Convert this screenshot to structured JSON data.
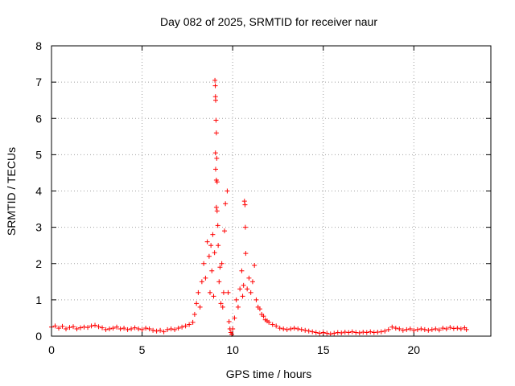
{
  "chart_data": {
    "type": "scatter",
    "title": "Day 082 of 2025, SRMTID for receiver naur",
    "xlabel": "GPS time / hours",
    "ylabel": "SRMTID / TECUs",
    "xlim": [
      0,
      24.25
    ],
    "ylim": [
      0,
      8
    ],
    "x_ticks": [
      "0",
      "5",
      "10",
      "15",
      "20"
    ],
    "y_ticks": [
      "0",
      "1",
      "2",
      "3",
      "4",
      "5",
      "6",
      "7",
      "8"
    ],
    "grid": true,
    "marker": "plus",
    "series_color": "#ff0000",
    "series": [
      {
        "name": "SRMTID",
        "points": [
          [
            0.0,
            0.25
          ],
          [
            0.2,
            0.28
          ],
          [
            0.4,
            0.22
          ],
          [
            0.6,
            0.27
          ],
          [
            0.8,
            0.2
          ],
          [
            1.0,
            0.24
          ],
          [
            1.2,
            0.26
          ],
          [
            1.4,
            0.2
          ],
          [
            1.6,
            0.23
          ],
          [
            1.8,
            0.25
          ],
          [
            2.0,
            0.24
          ],
          [
            2.2,
            0.28
          ],
          [
            2.4,
            0.3
          ],
          [
            2.6,
            0.26
          ],
          [
            2.8,
            0.23
          ],
          [
            3.0,
            0.18
          ],
          [
            3.2,
            0.2
          ],
          [
            3.4,
            0.22
          ],
          [
            3.6,
            0.25
          ],
          [
            3.8,
            0.2
          ],
          [
            4.0,
            0.22
          ],
          [
            4.2,
            0.18
          ],
          [
            4.4,
            0.2
          ],
          [
            4.6,
            0.23
          ],
          [
            4.8,
            0.2
          ],
          [
            5.0,
            0.18
          ],
          [
            5.2,
            0.22
          ],
          [
            5.4,
            0.2
          ],
          [
            5.6,
            0.16
          ],
          [
            5.8,
            0.14
          ],
          [
            6.0,
            0.16
          ],
          [
            6.2,
            0.12
          ],
          [
            6.4,
            0.18
          ],
          [
            6.6,
            0.2
          ],
          [
            6.8,
            0.18
          ],
          [
            7.0,
            0.22
          ],
          [
            7.2,
            0.25
          ],
          [
            7.4,
            0.28
          ],
          [
            7.6,
            0.32
          ],
          [
            7.8,
            0.38
          ],
          [
            7.9,
            0.6
          ],
          [
            8.0,
            0.9
          ],
          [
            8.1,
            1.2
          ],
          [
            8.2,
            0.8
          ],
          [
            8.3,
            1.5
          ],
          [
            8.4,
            2.0
          ],
          [
            8.5,
            1.6
          ],
          [
            8.6,
            2.6
          ],
          [
            8.7,
            2.2
          ],
          [
            8.75,
            1.2
          ],
          [
            8.8,
            2.5
          ],
          [
            8.85,
            1.8
          ],
          [
            8.9,
            2.8
          ],
          [
            8.95,
            1.1
          ],
          [
            9.0,
            2.3
          ],
          [
            9.02,
            7.05
          ],
          [
            9.04,
            6.9
          ],
          [
            9.05,
            6.6
          ],
          [
            9.06,
            6.5
          ],
          [
            9.08,
            5.95
          ],
          [
            9.1,
            5.6
          ],
          [
            9.05,
            5.05
          ],
          [
            9.12,
            4.9
          ],
          [
            9.06,
            4.6
          ],
          [
            9.1,
            4.3
          ],
          [
            9.14,
            4.25
          ],
          [
            9.1,
            3.55
          ],
          [
            9.14,
            3.45
          ],
          [
            9.18,
            3.05
          ],
          [
            9.2,
            2.5
          ],
          [
            9.25,
            1.5
          ],
          [
            9.3,
            1.9
          ],
          [
            9.35,
            0.9
          ],
          [
            9.4,
            2.0
          ],
          [
            9.45,
            0.8
          ],
          [
            9.5,
            1.2
          ],
          [
            9.55,
            2.9
          ],
          [
            9.6,
            3.65
          ],
          [
            9.7,
            4.0
          ],
          [
            9.75,
            1.2
          ],
          [
            9.8,
            0.4
          ],
          [
            9.85,
            0.2
          ],
          [
            9.9,
            0.1
          ],
          [
            9.95,
            0.05
          ],
          [
            10.0,
            0.2
          ],
          [
            10.1,
            0.5
          ],
          [
            10.2,
            1.0
          ],
          [
            10.3,
            0.8
          ],
          [
            10.4,
            1.3
          ],
          [
            10.5,
            1.8
          ],
          [
            10.55,
            1.1
          ],
          [
            10.6,
            1.4
          ],
          [
            10.65,
            3.72
          ],
          [
            10.68,
            3.62
          ],
          [
            10.7,
            3.0
          ],
          [
            10.72,
            2.28
          ],
          [
            10.8,
            1.3
          ],
          [
            10.9,
            1.6
          ],
          [
            11.0,
            1.2
          ],
          [
            11.1,
            1.5
          ],
          [
            11.2,
            1.95
          ],
          [
            11.3,
            1.0
          ],
          [
            11.4,
            0.8
          ],
          [
            11.5,
            0.75
          ],
          [
            11.6,
            0.6
          ],
          [
            11.7,
            0.55
          ],
          [
            11.8,
            0.45
          ],
          [
            11.9,
            0.42
          ],
          [
            12.0,
            0.38
          ],
          [
            12.2,
            0.32
          ],
          [
            12.4,
            0.28
          ],
          [
            12.6,
            0.22
          ],
          [
            12.8,
            0.2
          ],
          [
            13.0,
            0.18
          ],
          [
            13.2,
            0.2
          ],
          [
            13.4,
            0.22
          ],
          [
            13.6,
            0.2
          ],
          [
            13.8,
            0.18
          ],
          [
            14.0,
            0.16
          ],
          [
            14.2,
            0.14
          ],
          [
            14.4,
            0.12
          ],
          [
            14.6,
            0.1
          ],
          [
            14.8,
            0.08
          ],
          [
            15.0,
            0.1
          ],
          [
            15.2,
            0.08
          ],
          [
            15.4,
            0.06
          ],
          [
            15.6,
            0.08
          ],
          [
            15.8,
            0.1
          ],
          [
            16.0,
            0.09
          ],
          [
            16.2,
            0.11
          ],
          [
            16.4,
            0.1
          ],
          [
            16.6,
            0.12
          ],
          [
            16.8,
            0.1
          ],
          [
            17.0,
            0.09
          ],
          [
            17.2,
            0.11
          ],
          [
            17.4,
            0.1
          ],
          [
            17.6,
            0.12
          ],
          [
            17.8,
            0.1
          ],
          [
            18.0,
            0.11
          ],
          [
            18.2,
            0.12
          ],
          [
            18.4,
            0.14
          ],
          [
            18.6,
            0.18
          ],
          [
            18.8,
            0.25
          ],
          [
            19.0,
            0.22
          ],
          [
            19.2,
            0.2
          ],
          [
            19.4,
            0.16
          ],
          [
            19.6,
            0.18
          ],
          [
            19.8,
            0.2
          ],
          [
            20.0,
            0.16
          ],
          [
            20.2,
            0.18
          ],
          [
            20.4,
            0.2
          ],
          [
            20.6,
            0.18
          ],
          [
            20.8,
            0.16
          ],
          [
            21.0,
            0.18
          ],
          [
            21.2,
            0.2
          ],
          [
            21.4,
            0.17
          ],
          [
            21.6,
            0.22
          ],
          [
            21.8,
            0.2
          ],
          [
            22.0,
            0.24
          ],
          [
            22.2,
            0.21
          ],
          [
            22.4,
            0.22
          ],
          [
            22.6,
            0.2
          ],
          [
            22.8,
            0.23
          ],
          [
            22.9,
            0.18
          ]
        ]
      }
    ]
  }
}
